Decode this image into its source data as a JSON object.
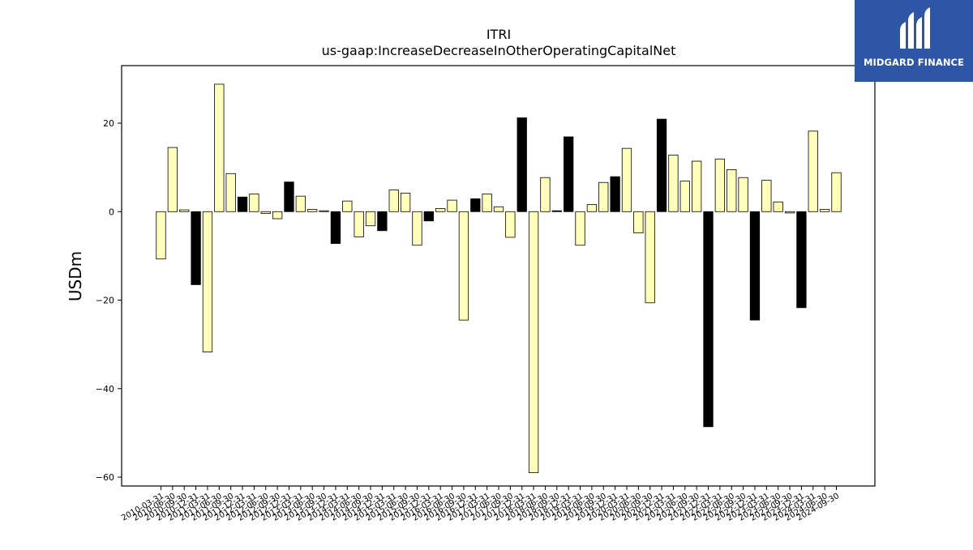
{
  "chart_data": {
    "type": "bar",
    "title": "ITRI",
    "subtitle": "us-gaap:IncreaseDecreaseInOtherOperatingCapitalNet",
    "xlabel": "",
    "ylabel": "USDm",
    "ylim": [
      -62,
      33
    ],
    "yticks": [
      -60,
      -40,
      -20,
      0,
      20
    ],
    "grid": false,
    "colors": {
      "positive": "#ffffbb",
      "highlight": "#000000",
      "edge": "#000000"
    },
    "tick_labels_visible": [
      "2010-03-31",
      "2010-06-30",
      "2010-09-30",
      "2010-12-31",
      "2011-03-31",
      "2011-06-30",
      "2011-09-30",
      "2011-12-31",
      "2012-03-31",
      "2012-06-30",
      "2012-09-30",
      "2012-12-31",
      "2013-03-31",
      "2013-06-30",
      "2013-09-30",
      "2013-12-31",
      "2014-03-31",
      "2014-06-30",
      "2014-09-30",
      "2014-12-31",
      "2015-03-31",
      "2015-06-30",
      "2015-09-30",
      "2015-12-31",
      "2016-03-31",
      "2016-06-30",
      "2016-09-30",
      "2016-12-31",
      "2017-03-31",
      "2017-06-30",
      "2017-09-30",
      "2017-12-31",
      "2018-03-31",
      "2018-06-30",
      "2018-09-30",
      "2018-12-31",
      "2019-03-31",
      "2019-06-30",
      "2019-09-30",
      "2019-12-31",
      "2020-03-31",
      "2020-06-30",
      "2020-09-30",
      "2020-12-31",
      "2021-03-31",
      "2021-06-30",
      "2021-09-30",
      "2021-12-31",
      "2022-03-31",
      "2022-06-30",
      "2022-09-30",
      "2022-12-31",
      "2023-03-31",
      "2023-06-30",
      "2023-09-30",
      "2023-12-31",
      "2024-03-31",
      "2024-06-30",
      "2024-09-30"
    ],
    "categories": [
      "2010-03-31",
      "2010-06-30",
      "2010-09-30",
      "2010-12-31",
      "2011-03-31",
      "2011-06-30",
      "2011-09-30",
      "2011-12-31",
      "2012-03-31",
      "2012-06-30",
      "2012-09-30",
      "2012-12-31",
      "2013-03-31",
      "2013-06-30",
      "2013-09-30",
      "2013-12-31",
      "2014-03-31",
      "2014-06-30",
      "2014-09-30",
      "2014-12-31",
      "2015-03-31",
      "2015-06-30",
      "2015-09-30",
      "2015-12-31",
      "2016-03-31",
      "2016-06-30",
      "2016-09-30",
      "2016-12-31",
      "2017-03-31",
      "2017-06-30",
      "2017-09-30",
      "2017-12-31",
      "2018-03-31",
      "2018-06-30",
      "2018-09-30",
      "2018-12-31",
      "2019-03-31",
      "2019-06-30",
      "2019-09-30",
      "2019-12-31",
      "2020-03-31",
      "2020-06-30",
      "2020-09-30",
      "2020-12-31",
      "2021-03-31",
      "2021-06-30",
      "2021-09-30",
      "2021-12-31",
      "2022-03-31",
      "2022-06-30",
      "2022-09-30",
      "2022-12-31",
      "2023-03-31",
      "2023-06-30",
      "2023-09-30",
      "2023-12-31",
      "2024-03-31",
      "2024-06-30",
      "2024-09-30"
    ],
    "values": [
      -10.7,
      14.5,
      0.4,
      -16.5,
      -31.7,
      28.8,
      8.6,
      3.3,
      4.0,
      -0.4,
      -1.6,
      6.7,
      3.5,
      0.5,
      0.2,
      -7.2,
      2.4,
      -5.7,
      -3.2,
      -4.3,
      4.9,
      4.2,
      -7.6,
      -2.1,
      0.7,
      2.6,
      -24.5,
      2.9,
      4.0,
      1.1,
      -5.8,
      21.2,
      -59.0,
      7.7,
      0.2,
      16.9,
      -7.6,
      1.6,
      6.6,
      7.9,
      14.3,
      -4.8,
      -20.6,
      20.9,
      12.8,
      6.9,
      11.4,
      -48.6,
      11.9,
      9.5,
      7.7,
      -24.5,
      7.1,
      2.2,
      -0.3,
      -21.7,
      18.2,
      0.5,
      8.8
    ],
    "highlighted": [
      false,
      false,
      false,
      true,
      false,
      false,
      false,
      true,
      false,
      false,
      false,
      true,
      false,
      false,
      false,
      true,
      false,
      false,
      false,
      true,
      false,
      false,
      false,
      true,
      false,
      false,
      false,
      true,
      false,
      false,
      false,
      true,
      false,
      false,
      true,
      true,
      false,
      false,
      false,
      true,
      false,
      false,
      false,
      true,
      false,
      false,
      false,
      true,
      false,
      false,
      false,
      true,
      false,
      false,
      false,
      true,
      false,
      false,
      false
    ]
  },
  "logo": {
    "name": "MIDGARD FINANCE",
    "background": "#2d56a6"
  }
}
